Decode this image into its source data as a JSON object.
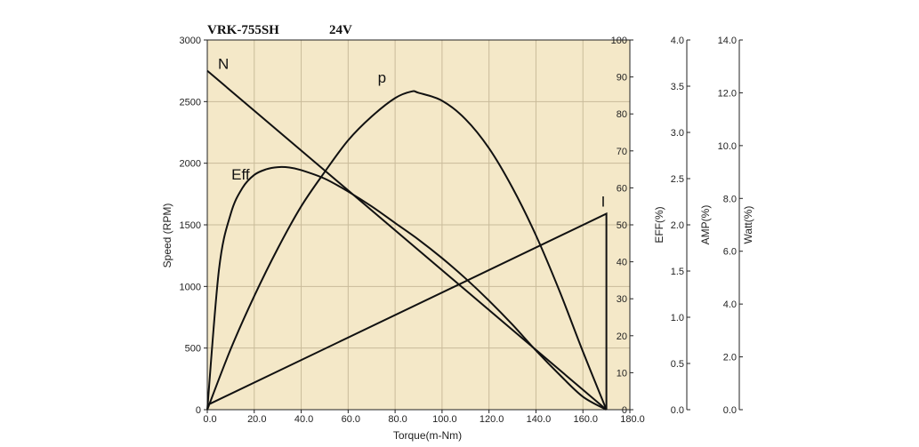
{
  "chart_data": {
    "type": "line",
    "title": "VRK-755SH",
    "subtitle": "24V",
    "background_color": "#f4e8c8",
    "line_color": "#111111",
    "grid": true,
    "x_axis": {
      "label": "Torque(m-Nm)",
      "range": [
        0,
        180
      ],
      "ticks": [
        "0.0",
        "20.0",
        "40.0",
        "60.0",
        "80.0",
        "100.0",
        "120.0",
        "140.0",
        "160.0",
        "180.0"
      ]
    },
    "y_axes": [
      {
        "id": "speed",
        "label": "Speed (RPM)",
        "side": "left",
        "range": [
          0,
          3000
        ],
        "ticks": [
          "0",
          "500",
          "1000",
          "1500",
          "2000",
          "2500",
          "3000"
        ]
      },
      {
        "id": "eff",
        "label": "EFF(%)",
        "side": "right",
        "range": [
          0,
          100
        ],
        "ticks": [
          "0",
          "10",
          "20",
          "30",
          "40",
          "50",
          "60",
          "70",
          "80",
          "90",
          "100"
        ]
      },
      {
        "id": "amp",
        "label": "AMP(%)",
        "side": "right",
        "range": [
          0,
          4
        ],
        "ticks": [
          "0.0",
          "0.5",
          "1.0",
          "1.5",
          "2.0",
          "2.5",
          "3.0",
          "3.5",
          "4.0"
        ]
      },
      {
        "id": "watt",
        "label": "Watt(%)",
        "side": "right",
        "range": [
          0,
          14
        ],
        "ticks": [
          "0.0",
          "2.0",
          "4.0",
          "6.0",
          "8.0",
          "10.0",
          "12.0",
          "14.0"
        ]
      }
    ],
    "series": [
      {
        "name": "N",
        "axis": "speed",
        "x": [
          0,
          170
        ],
        "y": [
          2750,
          0
        ]
      },
      {
        "name": "Eff",
        "axis": "eff",
        "x": [
          0,
          5,
          10,
          15,
          20,
          25,
          30,
          35,
          40,
          50,
          60,
          70,
          80,
          90,
          100,
          110,
          120,
          130,
          140,
          150,
          160,
          170
        ],
        "y": [
          0,
          38,
          53,
          60,
          63.5,
          65,
          65.6,
          65.5,
          64.8,
          62.5,
          59,
          55,
          50.5,
          46,
          41,
          35.5,
          29.5,
          23,
          16,
          9.5,
          3.5,
          0
        ]
      },
      {
        "name": "p",
        "axis": "watt",
        "x": [
          0,
          10,
          20,
          30,
          40,
          50,
          60,
          70,
          80,
          87,
          90,
          100,
          110,
          120,
          130,
          140,
          150,
          160,
          170
        ],
        "y": [
          0,
          2.3,
          4.3,
          6.1,
          7.7,
          9.0,
          10.2,
          11.1,
          11.8,
          12.05,
          12.0,
          11.7,
          11.0,
          9.9,
          8.4,
          6.6,
          4.5,
          2.2,
          0
        ]
      },
      {
        "name": "I",
        "axis": "amp",
        "x": [
          0,
          170,
          170
        ],
        "y": [
          0.05,
          2.12,
          0
        ]
      }
    ]
  }
}
